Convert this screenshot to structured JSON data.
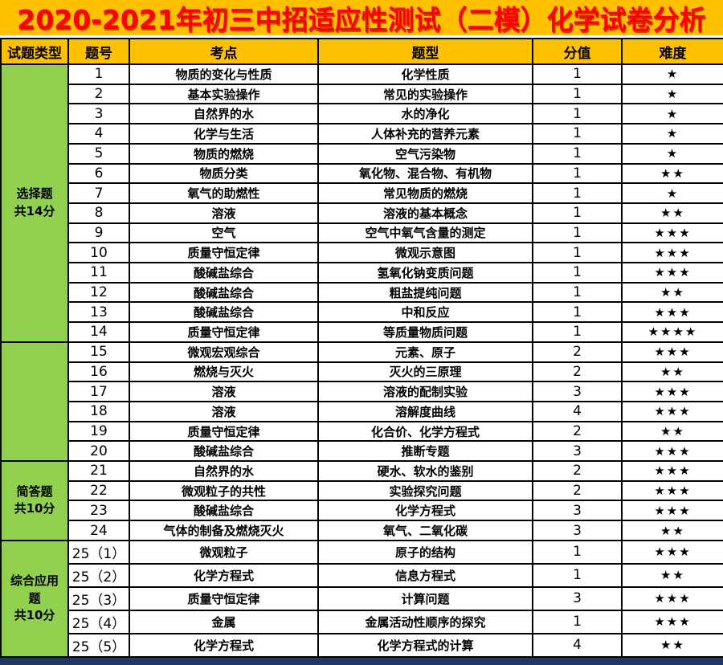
{
  "title": "2020-2021年初三中招适应性测试（二模）化学试卷分析",
  "colors": {
    "band_orange": "#FFC000",
    "group_green": "#92D050",
    "title_red": "#FF0000",
    "footer_navy": "#1F3864",
    "grid_black": "#000000"
  },
  "table": {
    "headers": [
      "试题类型",
      "题号",
      "考点",
      "题型",
      "分值",
      "难度"
    ],
    "groups": [
      {
        "label_lines": [
          "选择题",
          "共14分"
        ],
        "rows": [
          {
            "no": "1",
            "topic": "物质的变化与性质",
            "qtype": "化学性质",
            "score": "1",
            "difficulty": "★"
          },
          {
            "no": "2",
            "topic": "基本实验操作",
            "qtype": "常见的实验操作",
            "score": "1",
            "difficulty": "★"
          },
          {
            "no": "3",
            "topic": "自然界的水",
            "qtype": "水的净化",
            "score": "1",
            "difficulty": "★"
          },
          {
            "no": "4",
            "topic": "化学与生活",
            "qtype": "人体补充的营养元素",
            "score": "1",
            "difficulty": "★"
          },
          {
            "no": "5",
            "topic": "物质的燃烧",
            "qtype": "空气污染物",
            "score": "1",
            "difficulty": "★"
          },
          {
            "no": "6",
            "topic": "物质分类",
            "qtype": "氧化物、混合物、有机物",
            "score": "1",
            "difficulty": "★★"
          },
          {
            "no": "7",
            "topic": "氧气的助燃性",
            "qtype": "常见物质的燃烧",
            "score": "1",
            "difficulty": "★"
          },
          {
            "no": "8",
            "topic": "溶液",
            "qtype": "溶液的基本概念",
            "score": "1",
            "difficulty": "★★"
          },
          {
            "no": "9",
            "topic": "空气",
            "qtype": "空气中氧气含量的测定",
            "score": "1",
            "difficulty": "★★★"
          },
          {
            "no": "10",
            "topic": "质量守恒定律",
            "qtype": "微观示意图",
            "score": "1",
            "difficulty": "★★★"
          },
          {
            "no": "11",
            "topic": "酸碱盐综合",
            "qtype": "氢氧化钠变质问题",
            "score": "1",
            "difficulty": "★★★"
          },
          {
            "no": "12",
            "topic": "酸碱盐综合",
            "qtype": "粗盐提纯问题",
            "score": "1",
            "difficulty": "★★"
          },
          {
            "no": "13",
            "topic": "酸碱盐综合",
            "qtype": "中和反应",
            "score": "1",
            "difficulty": "★★★"
          },
          {
            "no": "14",
            "topic": "质量守恒定律",
            "qtype": "等质量物质问题",
            "score": "1",
            "difficulty": "★★★★"
          }
        ]
      },
      {
        "label_lines": [],
        "rows": [
          {
            "no": "15",
            "topic": "微观宏观综合",
            "qtype": "元素、原子",
            "score": "2",
            "difficulty": "★★★"
          },
          {
            "no": "16",
            "topic": "燃烧与灭火",
            "qtype": "灭火的三原理",
            "score": "2",
            "difficulty": "★★"
          },
          {
            "no": "17",
            "topic": "溶液",
            "qtype": "溶液的配制实验",
            "score": "3",
            "difficulty": "★★★"
          },
          {
            "no": "18",
            "topic": "溶液",
            "qtype": "溶解度曲线",
            "score": "4",
            "difficulty": "★★★"
          },
          {
            "no": "19",
            "topic": "质量守恒定律",
            "qtype": "化合价、化学方程式",
            "score": "2",
            "difficulty": "★★"
          },
          {
            "no": "20",
            "topic": "酸碱盐综合",
            "qtype": "推断专题",
            "score": "3",
            "difficulty": "★★★"
          }
        ]
      },
      {
        "label_lines": [
          "简答题",
          "共10分"
        ],
        "rows": [
          {
            "no": "21",
            "topic": "自然界的水",
            "qtype": "硬水、软水的鉴别",
            "score": "2",
            "difficulty": "★★★"
          },
          {
            "no": "22",
            "topic": "微观粒子的共性",
            "qtype": "实验探究问题",
            "score": "2",
            "difficulty": "★★★"
          },
          {
            "no": "23",
            "topic": "酸碱盐综合",
            "qtype": "化学方程式",
            "score": "3",
            "difficulty": "★★★"
          },
          {
            "no": "24",
            "topic": "气体的制备及燃烧灭火",
            "qtype": "氧气、二氧化碳",
            "score": "3",
            "difficulty": "★★"
          }
        ]
      },
      {
        "label_lines": [
          "综合应用",
          "题",
          "共10分"
        ],
        "rows": [
          {
            "no": "25（1）",
            "topic": "微观粒子",
            "qtype": "原子的结构",
            "score": "1",
            "difficulty": "★★★"
          },
          {
            "no": "25（2）",
            "topic": "化学方程式",
            "qtype": "信息方程式",
            "score": "1",
            "difficulty": "★★"
          },
          {
            "no": "25（3）",
            "topic": "质量守恒定律",
            "qtype": "计算问题",
            "score": "3",
            "difficulty": "★★★"
          },
          {
            "no": "25（4）",
            "topic": "金属",
            "qtype": "金属活动性顺序的探究",
            "score": "1",
            "difficulty": "★★★"
          },
          {
            "no": "25（5）",
            "topic": "化学方程式",
            "qtype": "化学方程式的计算",
            "score": "4",
            "difficulty": "★★"
          }
        ]
      }
    ]
  }
}
